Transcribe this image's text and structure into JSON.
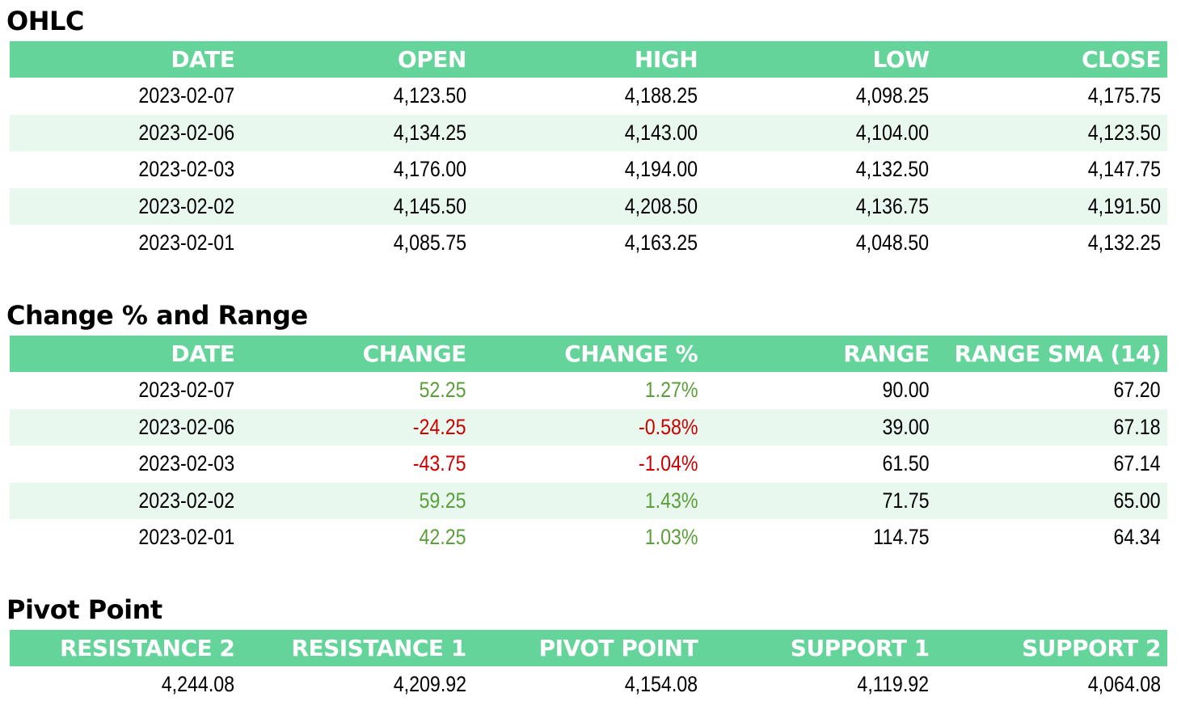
{
  "colors": {
    "header_bg": "#64d49a",
    "alt_row_bg": "#e8f8ef",
    "positive": "#5b9f3a",
    "negative": "#cc0000"
  },
  "ohlc": {
    "title": "OHLC",
    "headers": [
      "DATE",
      "OPEN",
      "HIGH",
      "LOW",
      "CLOSE"
    ],
    "rows": [
      [
        "2023-02-07",
        "4,123.50",
        "4,188.25",
        "4,098.25",
        "4,175.75"
      ],
      [
        "2023-02-06",
        "4,134.25",
        "4,143.00",
        "4,104.00",
        "4,123.50"
      ],
      [
        "2023-02-03",
        "4,176.00",
        "4,194.00",
        "4,132.50",
        "4,147.75"
      ],
      [
        "2023-02-02",
        "4,145.50",
        "4,208.50",
        "4,136.75",
        "4,191.50"
      ],
      [
        "2023-02-01",
        "4,085.75",
        "4,163.25",
        "4,048.50",
        "4,132.25"
      ]
    ]
  },
  "change": {
    "title": "Change % and Range",
    "headers": [
      "DATE",
      "CHANGE",
      "CHANGE %",
      "RANGE",
      "RANGE SMA (14)"
    ],
    "rows": [
      [
        "2023-02-07",
        "52.25",
        "1.27%",
        "90.00",
        "67.20"
      ],
      [
        "2023-02-06",
        "-24.25",
        "-0.58%",
        "39.00",
        "67.18"
      ],
      [
        "2023-02-03",
        "-43.75",
        "-1.04%",
        "61.50",
        "67.14"
      ],
      [
        "2023-02-02",
        "59.25",
        "1.43%",
        "71.75",
        "65.00"
      ],
      [
        "2023-02-01",
        "42.25",
        "1.03%",
        "114.75",
        "64.34"
      ]
    ]
  },
  "pivot": {
    "title": "Pivot Point",
    "headers": [
      "RESISTANCE 2",
      "RESISTANCE 1",
      "PIVOT POINT",
      "SUPPORT 1",
      "SUPPORT 2"
    ],
    "rows": [
      [
        "4,244.08",
        "4,209.92",
        "4,154.08",
        "4,119.92",
        "4,064.08"
      ]
    ]
  }
}
